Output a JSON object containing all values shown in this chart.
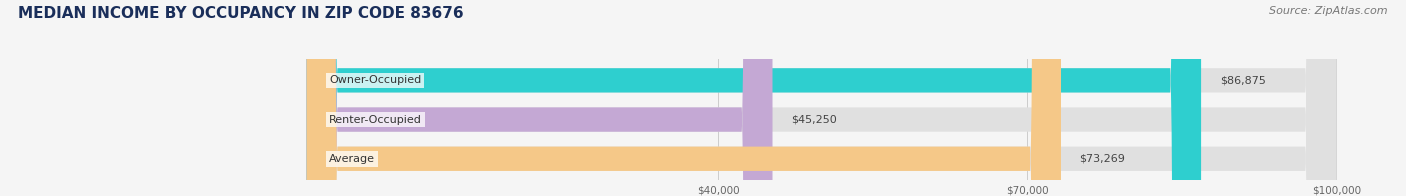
{
  "title": "MEDIAN INCOME BY OCCUPANCY IN ZIP CODE 83676",
  "source": "Source: ZipAtlas.com",
  "categories": [
    "Owner-Occupied",
    "Renter-Occupied",
    "Average"
  ],
  "values": [
    86875,
    45250,
    73269
  ],
  "labels": [
    "$86,875",
    "$45,250",
    "$73,269"
  ],
  "bar_colors": [
    "#2ecfcf",
    "#c4a8d4",
    "#f5c888"
  ],
  "xlim_min": -28000,
  "xlim_max": 105000,
  "xticks": [
    40000,
    70000,
    100000
  ],
  "xtick_labels": [
    "$40,000",
    "$70,000",
    "$100,000"
  ],
  "title_color": "#1a2e5a",
  "title_fontsize": 11,
  "source_fontsize": 8,
  "label_fontsize": 8,
  "category_fontsize": 8,
  "background_color": "#f5f5f5",
  "bar_bg_color": "#e0e0e0"
}
